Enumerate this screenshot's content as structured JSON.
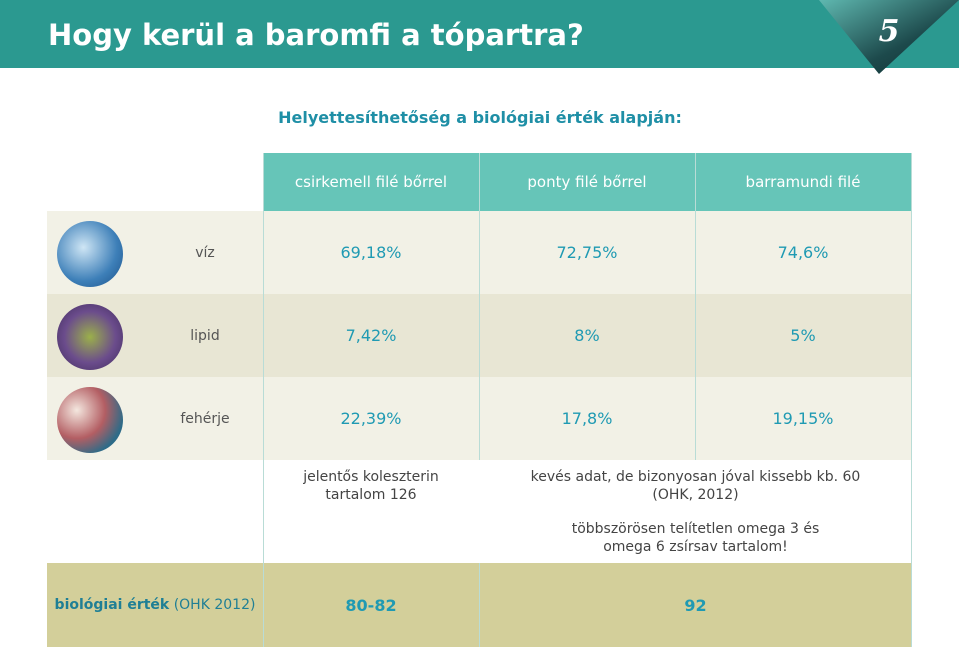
{
  "header": {
    "title": "Hogy kerül a baromfi a tópartra?",
    "page_number": "5"
  },
  "subtitle": "Helyettesíthetőség a biológiai érték alapján:",
  "table": {
    "columns": [
      "csirkemell filé bőrrel",
      "ponty filé bőrrel",
      "barramundi filé"
    ],
    "rows": [
      {
        "label": "víz",
        "values": [
          "69,18%",
          "72,75%",
          "74,6%"
        ]
      },
      {
        "label": "lipid",
        "values": [
          "7,42%",
          "8%",
          "5%"
        ]
      },
      {
        "label": "fehérje",
        "values": [
          "22,39%",
          "17,8%",
          "19,15%"
        ]
      }
    ],
    "notes": [
      [
        "jelentős koleszterin",
        "tartalom 126"
      ],
      [
        "kevés adat, de bizonyosan jóval kissebb kb. 60",
        "(OHK, 2012)"
      ],
      [
        "többszörösen telítetlen omega 3 és",
        "omega 6 zsírsav tartalom!"
      ]
    ],
    "footer": {
      "label_bold": "biológiai érték",
      "label_source": "(OHK 2012)",
      "values": [
        "80-82",
        "92"
      ]
    }
  }
}
